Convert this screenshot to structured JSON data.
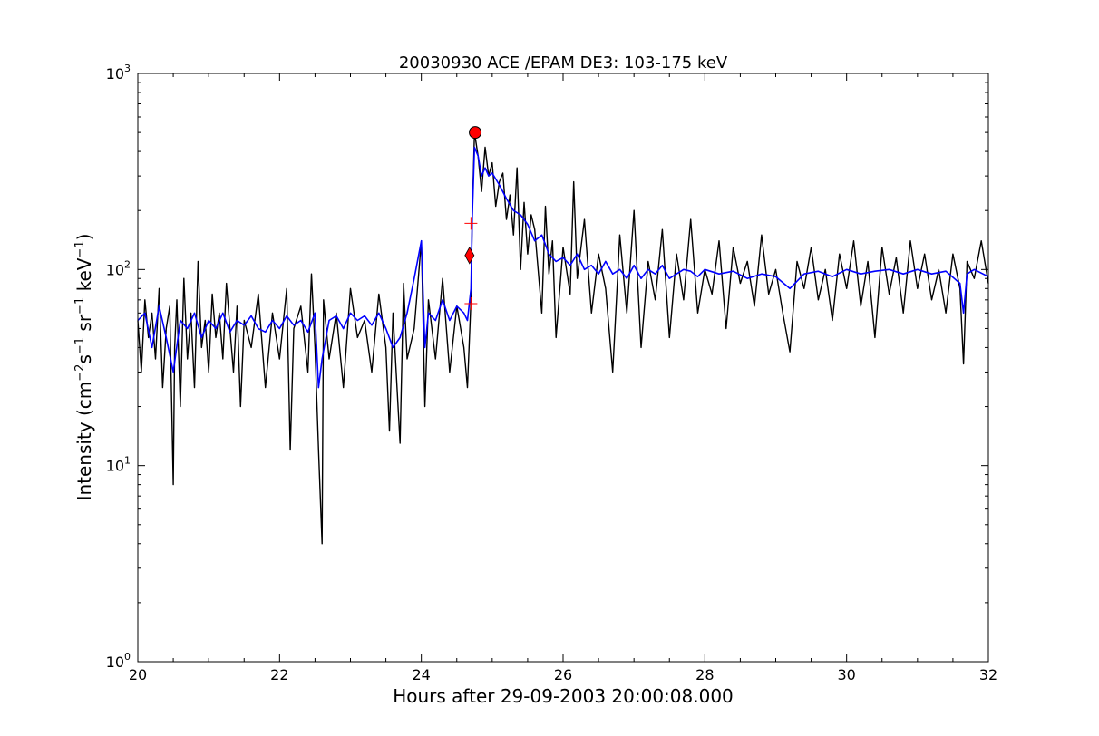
{
  "chart_data": {
    "type": "line",
    "title": "20030930 ACE /EPAM DE3: 103-175 keV",
    "xlabel": "Hours after 29-09-2003 20:00:08.000",
    "ylabel_prefix": "Intensity (cm",
    "ylabel_sup1": "−2",
    "ylabel_mid1": "s",
    "ylabel_sup2": "−1",
    "ylabel_mid2": " sr",
    "ylabel_sup3": "−1",
    "ylabel_mid3": " keV",
    "ylabel_sup4": "−1",
    "ylabel_suffix": ")",
    "xlim": [
      20,
      32
    ],
    "ylim": [
      1,
      1000
    ],
    "yscale": "log",
    "x_ticks": [
      "20",
      "22",
      "24",
      "26",
      "28",
      "30",
      "32"
    ],
    "y_ticks": [
      {
        "base": "10",
        "exp": "0"
      },
      {
        "base": "10",
        "exp": "1"
      },
      {
        "base": "10",
        "exp": "2"
      },
      {
        "base": "10",
        "exp": "3"
      }
    ],
    "grid": false,
    "series": [
      {
        "role": "raw",
        "color": "#000000",
        "points": [
          [
            20.0,
            55
          ],
          [
            20.05,
            30
          ],
          [
            20.1,
            70
          ],
          [
            20.15,
            45
          ],
          [
            20.2,
            60
          ],
          [
            20.25,
            35
          ],
          [
            20.3,
            80
          ],
          [
            20.35,
            25
          ],
          [
            20.4,
            50
          ],
          [
            20.45,
            65
          ],
          [
            20.5,
            8
          ],
          [
            20.52,
            40
          ],
          [
            20.55,
            70
          ],
          [
            20.6,
            20
          ],
          [
            20.65,
            90
          ],
          [
            20.7,
            35
          ],
          [
            20.75,
            60
          ],
          [
            20.8,
            25
          ],
          [
            20.85,
            110
          ],
          [
            20.9,
            40
          ],
          [
            20.95,
            55
          ],
          [
            21.0,
            30
          ],
          [
            21.05,
            75
          ],
          [
            21.1,
            45
          ],
          [
            21.15,
            60
          ],
          [
            21.2,
            35
          ],
          [
            21.25,
            85
          ],
          [
            21.3,
            50
          ],
          [
            21.35,
            30
          ],
          [
            21.4,
            65
          ],
          [
            21.45,
            20
          ],
          [
            21.5,
            55
          ],
          [
            21.6,
            40
          ],
          [
            21.7,
            75
          ],
          [
            21.8,
            25
          ],
          [
            21.9,
            60
          ],
          [
            22.0,
            35
          ],
          [
            22.1,
            80
          ],
          [
            22.15,
            12
          ],
          [
            22.2,
            50
          ],
          [
            22.3,
            65
          ],
          [
            22.4,
            30
          ],
          [
            22.45,
            95
          ],
          [
            22.5,
            40
          ],
          [
            22.55,
            12
          ],
          [
            22.6,
            4
          ],
          [
            22.62,
            70
          ],
          [
            22.7,
            35
          ],
          [
            22.8,
            60
          ],
          [
            22.9,
            25
          ],
          [
            23.0,
            80
          ],
          [
            23.1,
            45
          ],
          [
            23.2,
            55
          ],
          [
            23.3,
            30
          ],
          [
            23.4,
            75
          ],
          [
            23.5,
            40
          ],
          [
            23.55,
            15
          ],
          [
            23.6,
            60
          ],
          [
            23.7,
            13
          ],
          [
            23.75,
            85
          ],
          [
            23.8,
            35
          ],
          [
            23.9,
            50
          ],
          [
            24.0,
            140
          ],
          [
            24.05,
            20
          ],
          [
            24.1,
            70
          ],
          [
            24.2,
            35
          ],
          [
            24.3,
            90
          ],
          [
            24.4,
            30
          ],
          [
            24.5,
            65
          ],
          [
            24.6,
            40
          ],
          [
            24.65,
            25
          ],
          [
            24.7,
            70
          ],
          [
            24.72,
            200
          ],
          [
            24.75,
            500
          ],
          [
            24.8,
            380
          ],
          [
            24.85,
            250
          ],
          [
            24.9,
            420
          ],
          [
            24.95,
            300
          ],
          [
            25.0,
            350
          ],
          [
            25.05,
            210
          ],
          [
            25.1,
            280
          ],
          [
            25.15,
            310
          ],
          [
            25.2,
            180
          ],
          [
            25.25,
            240
          ],
          [
            25.3,
            150
          ],
          [
            25.35,
            330
          ],
          [
            25.4,
            100
          ],
          [
            25.45,
            220
          ],
          [
            25.5,
            120
          ],
          [
            25.55,
            190
          ],
          [
            25.6,
            160
          ],
          [
            25.7,
            60
          ],
          [
            25.75,
            210
          ],
          [
            25.8,
            95
          ],
          [
            25.85,
            140
          ],
          [
            25.9,
            45
          ],
          [
            26.0,
            130
          ],
          [
            26.1,
            75
          ],
          [
            26.15,
            280
          ],
          [
            26.2,
            90
          ],
          [
            26.3,
            180
          ],
          [
            26.4,
            60
          ],
          [
            26.5,
            120
          ],
          [
            26.6,
            80
          ],
          [
            26.7,
            30
          ],
          [
            26.8,
            150
          ],
          [
            26.9,
            60
          ],
          [
            27.0,
            200
          ],
          [
            27.1,
            40
          ],
          [
            27.2,
            110
          ],
          [
            27.3,
            70
          ],
          [
            27.4,
            160
          ],
          [
            27.5,
            45
          ],
          [
            27.6,
            120
          ],
          [
            27.7,
            70
          ],
          [
            27.8,
            180
          ],
          [
            27.9,
            60
          ],
          [
            28.0,
            100
          ],
          [
            28.1,
            75
          ],
          [
            28.2,
            140
          ],
          [
            28.3,
            50
          ],
          [
            28.4,
            130
          ],
          [
            28.5,
            85
          ],
          [
            28.6,
            110
          ],
          [
            28.7,
            65
          ],
          [
            28.8,
            150
          ],
          [
            28.9,
            75
          ],
          [
            29.0,
            100
          ],
          [
            29.1,
            60
          ],
          [
            29.2,
            38
          ],
          [
            29.3,
            110
          ],
          [
            29.4,
            80
          ],
          [
            29.5,
            130
          ],
          [
            29.6,
            70
          ],
          [
            29.7,
            100
          ],
          [
            29.8,
            55
          ],
          [
            29.9,
            120
          ],
          [
            30.0,
            80
          ],
          [
            30.1,
            140
          ],
          [
            30.2,
            65
          ],
          [
            30.3,
            110
          ],
          [
            30.4,
            45
          ],
          [
            30.5,
            130
          ],
          [
            30.6,
            75
          ],
          [
            30.7,
            115
          ],
          [
            30.8,
            60
          ],
          [
            30.9,
            140
          ],
          [
            31.0,
            80
          ],
          [
            31.1,
            120
          ],
          [
            31.2,
            70
          ],
          [
            31.3,
            100
          ],
          [
            31.4,
            60
          ],
          [
            31.5,
            120
          ],
          [
            31.6,
            80
          ],
          [
            31.65,
            33
          ],
          [
            31.7,
            110
          ],
          [
            31.8,
            90
          ],
          [
            31.9,
            140
          ],
          [
            32.0,
            85
          ]
        ]
      },
      {
        "role": "smoothed",
        "color": "#0000ff",
        "points": [
          [
            20.0,
            55
          ],
          [
            20.1,
            60
          ],
          [
            20.2,
            40
          ],
          [
            20.3,
            65
          ],
          [
            20.4,
            45
          ],
          [
            20.5,
            30
          ],
          [
            20.6,
            55
          ],
          [
            20.7,
            50
          ],
          [
            20.8,
            60
          ],
          [
            20.9,
            45
          ],
          [
            21.0,
            55
          ],
          [
            21.1,
            50
          ],
          [
            21.2,
            60
          ],
          [
            21.3,
            48
          ],
          [
            21.4,
            55
          ],
          [
            21.5,
            52
          ],
          [
            21.6,
            58
          ],
          [
            21.7,
            50
          ],
          [
            21.8,
            48
          ],
          [
            21.9,
            55
          ],
          [
            22.0,
            50
          ],
          [
            22.1,
            58
          ],
          [
            22.2,
            52
          ],
          [
            22.3,
            55
          ],
          [
            22.4,
            48
          ],
          [
            22.5,
            60
          ],
          [
            22.55,
            25
          ],
          [
            22.6,
            35
          ],
          [
            22.7,
            55
          ],
          [
            22.8,
            58
          ],
          [
            22.9,
            50
          ],
          [
            23.0,
            60
          ],
          [
            23.1,
            55
          ],
          [
            23.2,
            58
          ],
          [
            23.3,
            52
          ],
          [
            23.4,
            60
          ],
          [
            23.5,
            50
          ],
          [
            23.6,
            40
          ],
          [
            23.7,
            45
          ],
          [
            23.8,
            60
          ],
          [
            23.9,
            90
          ],
          [
            24.0,
            140
          ],
          [
            24.05,
            40
          ],
          [
            24.1,
            60
          ],
          [
            24.2,
            55
          ],
          [
            24.3,
            70
          ],
          [
            24.4,
            55
          ],
          [
            24.5,
            65
          ],
          [
            24.6,
            60
          ],
          [
            24.65,
            55
          ],
          [
            24.7,
            80
          ],
          [
            24.72,
            190
          ],
          [
            24.75,
            420
          ],
          [
            24.8,
            380
          ],
          [
            24.85,
            300
          ],
          [
            24.9,
            330
          ],
          [
            24.95,
            300
          ],
          [
            25.0,
            310
          ],
          [
            25.1,
            270
          ],
          [
            25.2,
            230
          ],
          [
            25.3,
            200
          ],
          [
            25.4,
            190
          ],
          [
            25.5,
            170
          ],
          [
            25.6,
            140
          ],
          [
            25.7,
            150
          ],
          [
            25.8,
            120
          ],
          [
            25.9,
            110
          ],
          [
            26.0,
            115
          ],
          [
            26.1,
            105
          ],
          [
            26.2,
            120
          ],
          [
            26.3,
            100
          ],
          [
            26.4,
            105
          ],
          [
            26.5,
            95
          ],
          [
            26.6,
            110
          ],
          [
            26.7,
            95
          ],
          [
            26.8,
            100
          ],
          [
            26.9,
            90
          ],
          [
            27.0,
            105
          ],
          [
            27.1,
            90
          ],
          [
            27.2,
            100
          ],
          [
            27.3,
            95
          ],
          [
            27.4,
            105
          ],
          [
            27.5,
            90
          ],
          [
            27.6,
            95
          ],
          [
            27.7,
            100
          ],
          [
            27.8,
            98
          ],
          [
            27.9,
            92
          ],
          [
            28.0,
            100
          ],
          [
            28.2,
            95
          ],
          [
            28.4,
            98
          ],
          [
            28.6,
            90
          ],
          [
            28.8,
            95
          ],
          [
            29.0,
            92
          ],
          [
            29.2,
            80
          ],
          [
            29.4,
            95
          ],
          [
            29.6,
            98
          ],
          [
            29.8,
            92
          ],
          [
            30.0,
            100
          ],
          [
            30.2,
            95
          ],
          [
            30.4,
            98
          ],
          [
            30.6,
            100
          ],
          [
            30.8,
            95
          ],
          [
            31.0,
            100
          ],
          [
            31.2,
            95
          ],
          [
            31.4,
            98
          ],
          [
            31.6,
            85
          ],
          [
            31.65,
            60
          ],
          [
            31.7,
            95
          ],
          [
            31.8,
            100
          ],
          [
            32.0,
            92
          ]
        ]
      }
    ],
    "markers": [
      {
        "shape": "circle",
        "x": 24.76,
        "y": 500,
        "color": "#ff0000"
      },
      {
        "shape": "diamond",
        "x": 24.68,
        "y": 118,
        "color": "#ff0000"
      },
      {
        "shape": "plus",
        "x": 24.7,
        "y": 172,
        "color": "#ff0000"
      },
      {
        "shape": "plus",
        "x": 24.7,
        "y": 67,
        "color": "#ff0000"
      }
    ]
  }
}
